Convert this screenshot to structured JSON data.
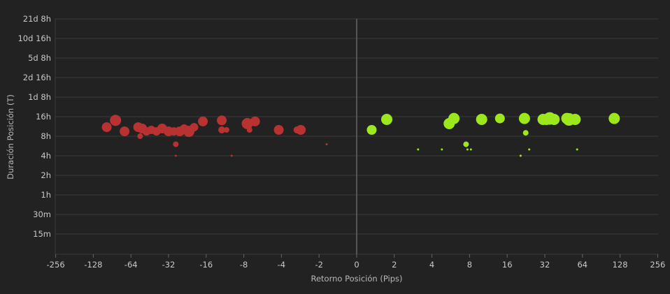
{
  "chart_data": {
    "type": "scatter",
    "title": "",
    "xlabel": "Retorno Posición (Pips)",
    "ylabel": "Duración Posición (T)",
    "x_scale": "symlog-base2",
    "y_scale": "log",
    "x_ticks": [
      -256,
      -128,
      -64,
      -32,
      -16,
      -8,
      -4,
      -2,
      0,
      2,
      4,
      8,
      16,
      32,
      64,
      128,
      256
    ],
    "x_tick_labels": [
      "-256",
      "-128",
      "-64",
      "-32",
      "-16",
      "-8",
      "-4",
      "-2",
      "0",
      "2",
      "4",
      "8",
      "16",
      "32",
      "64",
      "128",
      "256"
    ],
    "y_ticks_hours": [
      0.25,
      0.5,
      1,
      2,
      4,
      8,
      16,
      32,
      64,
      128,
      256,
      512
    ],
    "y_tick_labels": [
      "15m",
      "30m",
      "1h",
      "2h",
      "4h",
      "8h",
      "16h",
      "1d 8h",
      "2d 16h",
      "5d 8h",
      "10d 16h",
      "21d 8h"
    ],
    "colors": {
      "loss": "#b83232",
      "win": "#9de81c",
      "grid": "#3a3a3a",
      "zero_line": "#555555",
      "background": "#222222"
    },
    "series": [
      {
        "outcome": "loss",
        "points": [
          {
            "x": -100,
            "y": 11,
            "size": 7
          },
          {
            "x": -85,
            "y": 14,
            "size": 8
          },
          {
            "x": -72,
            "y": 9.5,
            "size": 7
          },
          {
            "x": -56,
            "y": 11,
            "size": 7
          },
          {
            "x": -52,
            "y": 10.5,
            "size": 7
          },
          {
            "x": -54,
            "y": 8,
            "size": 4
          },
          {
            "x": -48,
            "y": 9.5,
            "size": 6
          },
          {
            "x": -44,
            "y": 10,
            "size": 6
          },
          {
            "x": -40,
            "y": 9.5,
            "size": 6
          },
          {
            "x": -36,
            "y": 10.5,
            "size": 7
          },
          {
            "x": -32,
            "y": 9.5,
            "size": 7
          },
          {
            "x": -29,
            "y": 9.5,
            "size": 6
          },
          {
            "x": -26,
            "y": 9.5,
            "size": 7
          },
          {
            "x": -24,
            "y": 10.5,
            "size": 6
          },
          {
            "x": -22,
            "y": 9.5,
            "size": 8
          },
          {
            "x": -20,
            "y": 11,
            "size": 6
          },
          {
            "x": -17,
            "y": 13.5,
            "size": 7
          },
          {
            "x": -28,
            "y": 6,
            "size": 4
          },
          {
            "x": -28,
            "y": 4,
            "size": 1.5
          },
          {
            "x": -12,
            "y": 14,
            "size": 7
          },
          {
            "x": -12,
            "y": 10,
            "size": 5
          },
          {
            "x": -11,
            "y": 10,
            "size": 4
          },
          {
            "x": -10,
            "y": 4,
            "size": 1.5
          },
          {
            "x": -7.5,
            "y": 12.5,
            "size": 8
          },
          {
            "x": -7.2,
            "y": 10,
            "size": 4
          },
          {
            "x": -6.5,
            "y": 13.5,
            "size": 7
          },
          {
            "x": -4.2,
            "y": 10,
            "size": 7
          },
          {
            "x": -3,
            "y": 10,
            "size": 5
          },
          {
            "x": -2.8,
            "y": 10,
            "size": 7
          },
          {
            "x": -1.6,
            "y": 6,
            "size": 1.5
          }
        ]
      },
      {
        "outcome": "win",
        "points": [
          {
            "x": 0.8,
            "y": 10,
            "size": 7
          },
          {
            "x": 1.6,
            "y": 14.5,
            "size": 8
          },
          {
            "x": 3.1,
            "y": 5,
            "size": 1.5
          },
          {
            "x": 4.8,
            "y": 5,
            "size": 1.5
          },
          {
            "x": 5.5,
            "y": 12.5,
            "size": 8
          },
          {
            "x": 6,
            "y": 15,
            "size": 8
          },
          {
            "x": 7.5,
            "y": 6,
            "size": 4
          },
          {
            "x": 7.7,
            "y": 5,
            "size": 1.5
          },
          {
            "x": 8.2,
            "y": 5,
            "size": 1.5
          },
          {
            "x": 10,
            "y": 14.5,
            "size": 8
          },
          {
            "x": 14,
            "y": 15,
            "size": 7
          },
          {
            "x": 20.5,
            "y": 4,
            "size": 1.5
          },
          {
            "x": 22,
            "y": 15,
            "size": 8
          },
          {
            "x": 22.5,
            "y": 9,
            "size": 4
          },
          {
            "x": 24,
            "y": 5,
            "size": 1.5
          },
          {
            "x": 31,
            "y": 14.5,
            "size": 8
          },
          {
            "x": 33,
            "y": 14.5,
            "size": 8
          },
          {
            "x": 35,
            "y": 15,
            "size": 9
          },
          {
            "x": 38,
            "y": 14.5,
            "size": 8
          },
          {
            "x": 48,
            "y": 15,
            "size": 8
          },
          {
            "x": 50,
            "y": 14.5,
            "size": 9
          },
          {
            "x": 56,
            "y": 14.5,
            "size": 8
          },
          {
            "x": 58,
            "y": 5,
            "size": 1.5
          },
          {
            "x": 115,
            "y": 15,
            "size": 8
          }
        ]
      }
    ]
  }
}
